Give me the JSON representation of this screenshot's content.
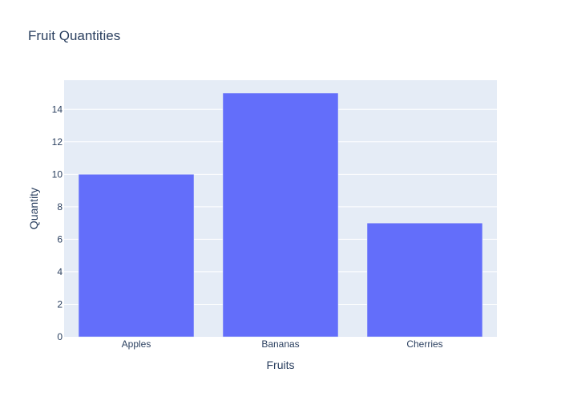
{
  "chart_data": {
    "type": "bar",
    "title": "Fruit Quantities",
    "xlabel": "Fruits",
    "ylabel": "Quantity",
    "categories": [
      "Apples",
      "Bananas",
      "Cherries"
    ],
    "values": [
      10,
      15,
      7
    ],
    "ylim": [
      0,
      15.79
    ],
    "yticks": [
      0,
      2,
      4,
      6,
      8,
      10,
      12,
      14
    ],
    "grid": true,
    "legend": "none",
    "colors": {
      "bar": "#636efa",
      "plot_background": "#e5ecf6",
      "paper_background": "#ffffff",
      "grid": "#ffffff",
      "text": "#2a3f5f"
    }
  }
}
